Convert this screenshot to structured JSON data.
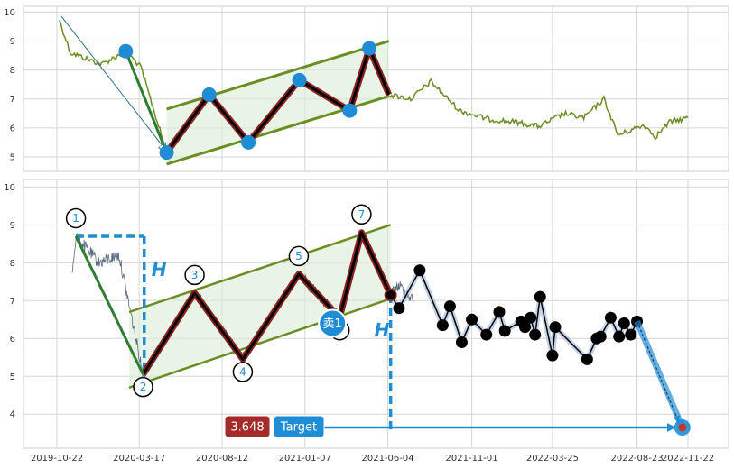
{
  "chart_data": [
    {
      "type": "line",
      "panel": "top",
      "ylim": [
        4.5,
        10.2
      ],
      "yticks": [
        "5",
        "6",
        "7",
        "8",
        "9",
        "10"
      ],
      "grid": true,
      "colors": {
        "price": "#6b8e23",
        "channel": "#6b8e23",
        "zigzag": "#8b2020",
        "points": "#1f8dd6"
      },
      "pattern_points": [
        {
          "x": "2020-02-22",
          "y": 8.65
        },
        {
          "x": "2020-05-05",
          "y": 5.15
        },
        {
          "x": "2020-07-20",
          "y": 7.15
        },
        {
          "x": "2020-09-28",
          "y": 5.5
        },
        {
          "x": "2020-12-28",
          "y": 7.65
        },
        {
          "x": "2021-03-28",
          "y": 6.6
        },
        {
          "x": "2021-05-02",
          "y": 8.75
        },
        {
          "x": "2021-06-06",
          "y": 7.15
        }
      ],
      "channel": {
        "upper": [
          {
            "x": "2020-05-05",
            "y": 6.65
          },
          {
            "x": "2021-06-06",
            "y": 9.0
          }
        ],
        "lower": [
          {
            "x": "2020-05-05",
            "y": 4.75
          },
          {
            "x": "2021-06-06",
            "y": 7.1
          }
        ]
      },
      "arrow": {
        "from": {
          "x": "2019-10-30",
          "y": 9.85
        },
        "to": {
          "x": "2020-05-05",
          "y": 5.2
        }
      }
    },
    {
      "type": "line",
      "panel": "bottom",
      "ylim": [
        3.1,
        10.2
      ],
      "yticks": [
        "4",
        "5",
        "6",
        "7",
        "8",
        "9",
        "10"
      ],
      "xticks": [
        "2019-10-22",
        "2020-03-17",
        "2020-08-12",
        "2021-01-07",
        "2021-06-04",
        "2021-11-01",
        "2022-03-25",
        "2022-08-23",
        "2022-11-22"
      ],
      "grid": true,
      "colors": {
        "price": "#5a6a80",
        "channel": "#6b8e23",
        "zigzag": "#8b2020",
        "markers": "#000000",
        "accent": "#1f8dd6",
        "badge": "#a52a2a"
      },
      "pattern_points": [
        {
          "label": "1",
          "x": "2019-11-25",
          "y": 8.7
        },
        {
          "label": "2",
          "x": "2020-03-24",
          "y": 5.05
        },
        {
          "label": "3",
          "x": "2020-06-24",
          "y": 7.2
        },
        {
          "label": "4",
          "x": "2020-09-18",
          "y": 5.45
        },
        {
          "label": "5",
          "x": "2020-12-27",
          "y": 7.7
        },
        {
          "label": "6",
          "x": "2021-03-10",
          "y": 6.55
        },
        {
          "label": "7",
          "x": "2021-04-18",
          "y": 8.8
        },
        {
          "label": "",
          "x": "2021-06-09",
          "y": 7.15
        }
      ],
      "channel": {
        "upper": [
          {
            "x": "2020-02-28",
            "y": 6.7
          },
          {
            "x": "2021-06-09",
            "y": 9.0
          }
        ],
        "lower": [
          {
            "x": "2020-02-28",
            "y": 4.7
          },
          {
            "x": "2021-06-09",
            "y": 7.05
          }
        ]
      },
      "forecast_points": [
        {
          "x": "2021-06-09",
          "y": 7.15
        },
        {
          "x": "2021-06-24",
          "y": 6.8
        },
        {
          "x": "2021-07-31",
          "y": 7.8
        },
        {
          "x": "2021-09-10",
          "y": 6.35
        },
        {
          "x": "2021-09-23",
          "y": 6.85
        },
        {
          "x": "2021-10-14",
          "y": 5.9
        },
        {
          "x": "2021-11-01",
          "y": 6.5
        },
        {
          "x": "2021-11-27",
          "y": 6.1
        },
        {
          "x": "2021-12-20",
          "y": 6.7
        },
        {
          "x": "2021-12-30",
          "y": 6.2
        },
        {
          "x": "2022-01-28",
          "y": 6.45
        },
        {
          "x": "2022-02-04",
          "y": 6.3
        },
        {
          "x": "2022-02-14",
          "y": 6.55
        },
        {
          "x": "2022-02-22",
          "y": 6.1
        },
        {
          "x": "2022-03-03",
          "y": 7.1
        },
        {
          "x": "2022-03-25",
          "y": 5.55
        },
        {
          "x": "2022-03-30",
          "y": 6.3
        },
        {
          "x": "2022-05-26",
          "y": 5.45
        },
        {
          "x": "2022-06-12",
          "y": 6.0
        },
        {
          "x": "2022-06-19",
          "y": 6.05
        },
        {
          "x": "2022-07-07",
          "y": 6.55
        },
        {
          "x": "2022-07-22",
          "y": 6.05
        },
        {
          "x": "2022-07-31",
          "y": 6.4
        },
        {
          "x": "2022-08-12",
          "y": 6.1
        },
        {
          "x": "2022-08-23",
          "y": 6.45
        }
      ],
      "target_arrow": {
        "from": {
          "x": "2022-08-23",
          "y": 6.45
        },
        "to": {
          "x": "2022-11-12",
          "y": 3.648
        }
      },
      "measure_top": {
        "y": 8.7,
        "x0": "2019-11-25",
        "x1": "2020-03-26"
      },
      "measure_break": {
        "x": "2021-06-09",
        "y0": 7.15,
        "y1": 3.6
      },
      "target_line": {
        "y": 3.648,
        "x0": "2021-02-05",
        "x1": "2022-11-12"
      },
      "sell_marker": {
        "label": "卖1",
        "x": "2021-02-25",
        "y": 6.4
      },
      "h_labels": [
        "H",
        "H"
      ],
      "target_value": "3.648",
      "target_label": "Target"
    }
  ]
}
